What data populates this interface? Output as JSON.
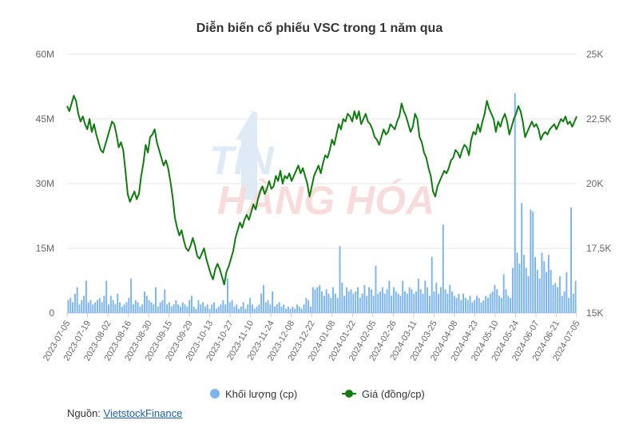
{
  "chart_data": {
    "type": "bar+line",
    "title": "Diễn biến cổ phiếu VSC trong 1 năm qua",
    "y_left": {
      "ticks": [
        "0",
        "15M",
        "30M",
        "45M",
        "60M"
      ],
      "range": [
        0,
        60000000
      ]
    },
    "y_right": {
      "ticks": [
        "15K",
        "17,5K",
        "20K",
        "22,5K",
        "25K"
      ],
      "range": [
        15000,
        25000
      ]
    },
    "x_ticks": [
      "2023-07-05",
      "2023-07-19",
      "2023-08-02",
      "2023-08-16",
      "2023-08-30",
      "2023-09-15",
      "2023-09-29",
      "2023-10-13",
      "2023-10-27",
      "2023-11-10",
      "2023-11-24",
      "2023-12-08",
      "2023-12-22",
      "2024-01-08",
      "2024-01-22",
      "2024-02-05",
      "2024-02-26",
      "2024-03-11",
      "2024-03-25",
      "2024-04-08",
      "2024-04-23",
      "2024-05-10",
      "2024-05-24",
      "2024-06-07",
      "2024-06-21",
      "2024-07-05"
    ],
    "series": [
      {
        "name": "Khối lượng (cp)",
        "kind": "bar",
        "axis": "left",
        "color": "#7cb5ec",
        "values": [
          3000000,
          3500000,
          2500000,
          4500000,
          6000000,
          2000000,
          3000000,
          4000000,
          7500000,
          2500000,
          3000000,
          2000000,
          2500000,
          3000000,
          3500000,
          2500000,
          4000000,
          7500000,
          2000000,
          4000000,
          3000000,
          2000000,
          4500000,
          2500000,
          1500000,
          2000000,
          2500000,
          3500000,
          8000000,
          2000000,
          3000000,
          2500000,
          1500000,
          2000000,
          5000000,
          4000000,
          3000000,
          2500000,
          2000000,
          6000000,
          1500000,
          2500000,
          3000000,
          5500000,
          2000000,
          2500000,
          1500000,
          2000000,
          3000000,
          2000000,
          1500000,
          2500000,
          2000000,
          1500000,
          3000000,
          4000000,
          1500000,
          1000000,
          3000000,
          2000000,
          2500000,
          1500000,
          2000000,
          1000000,
          2000000,
          2500000,
          1000000,
          1500000,
          2000000,
          3000000,
          2000000,
          8000000,
          2500000,
          3000000,
          1500000,
          2000000,
          1000000,
          1500000,
          2500000,
          1000000,
          2000000,
          3500000,
          2000000,
          1000000,
          1500000,
          2000000,
          4500000,
          6500000,
          2500000,
          3000000,
          2000000,
          5000000,
          1500000,
          2000000,
          2500000,
          1500000,
          2000000,
          1000000,
          1500000,
          1000000,
          1500000,
          1000000,
          2000000,
          1500000,
          1000000,
          2000000,
          3500000,
          3000000,
          1500000,
          6000000,
          5500000,
          6000000,
          6500000,
          5000000,
          4000000,
          5500000,
          4500000,
          3500000,
          6000000,
          4500000,
          3500000,
          15500000,
          7000000,
          4000000,
          6000000,
          5000000,
          5500000,
          4500000,
          5000000,
          6000000,
          3500000,
          4500000,
          6500000,
          4000000,
          6000000,
          5500000,
          4000000,
          11000000,
          4500000,
          5000000,
          6000000,
          4500000,
          5500000,
          7500000,
          4000000,
          6000000,
          5000000,
          4500000,
          4000000,
          7500000,
          5000000,
          4500000,
          6000000,
          5500000,
          4500000,
          5000000,
          8000000,
          5500000,
          4500000,
          7500000,
          6000000,
          4000000,
          13000000,
          5000000,
          7000000,
          4500000,
          6000000,
          20500000,
          5500000,
          4500000,
          6500000,
          5000000,
          4000000,
          3500000,
          4500000,
          3000000,
          4500000,
          3500000,
          3000000,
          4000000,
          2500000,
          3000000,
          4000000,
          3500000,
          2500000,
          3000000,
          4000000,
          3500000,
          4500000,
          5000000,
          6500000,
          5500000,
          4000000,
          3500000,
          9000000,
          5500000,
          4000000,
          3500000,
          10500000,
          51000000,
          14000000,
          11500000,
          25500000,
          13500000,
          10500000,
          8500000,
          24000000,
          23500000,
          13000000,
          10000000,
          8000000,
          14000000,
          12000000,
          9500000,
          13500000,
          10000000,
          6500000,
          7000000,
          6000000,
          8500000,
          4000000,
          5000000,
          9500000,
          3500000,
          24500000,
          4500000,
          7500000
        ]
      },
      {
        "name": "Giá (đồng/cp)",
        "kind": "line",
        "axis": "right",
        "color": "#107c10",
        "values": [
          23000,
          22800,
          23100,
          23400,
          23200,
          22700,
          22400,
          22600,
          22300,
          22100,
          22500,
          22000,
          22300,
          21900,
          21600,
          21300,
          21200,
          21500,
          21800,
          22100,
          22400,
          22300,
          21900,
          21400,
          21600,
          21300,
          20500,
          19600,
          19300,
          19500,
          19700,
          19400,
          19600,
          20300,
          20800,
          21500,
          21200,
          21800,
          21900,
          22100,
          21600,
          21300,
          21000,
          20700,
          20900,
          20600,
          20100,
          19500,
          18700,
          18300,
          18000,
          18200,
          17800,
          17500,
          17400,
          17600,
          17900,
          17600,
          17200,
          17100,
          17300,
          17500,
          17100,
          16800,
          16500,
          16300,
          16700,
          16900,
          16700,
          16400,
          16100,
          16600,
          16800,
          17100,
          17400,
          17900,
          18200,
          18500,
          18300,
          18600,
          18800,
          18600,
          18900,
          19200,
          19000,
          19400,
          19700,
          19900,
          19600,
          19800,
          20100,
          19800,
          19900,
          20300,
          20100,
          20500,
          20000,
          20300,
          20200,
          20400,
          20100,
          20300,
          20500,
          20700,
          20400,
          20600,
          20300,
          20000,
          19500,
          19900,
          20300,
          20500,
          20700,
          20400,
          20800,
          21100,
          21000,
          21300,
          21700,
          21500,
          21900,
          22300,
          22100,
          22500,
          22400,
          22700,
          22600,
          22400,
          22800,
          22500,
          22800,
          22300,
          22500,
          22700,
          22400,
          22300,
          22100,
          21800,
          21700,
          21500,
          21800,
          22100,
          21900,
          22000,
          22300,
          22200,
          22100,
          22400,
          22600,
          23100,
          22800,
          22600,
          22300,
          22000,
          22200,
          22700,
          22500,
          21800,
          21600,
          21200,
          21000,
          20600,
          20300,
          19700,
          19500,
          19900,
          20100,
          20300,
          20500,
          20400,
          20600,
          20900,
          21000,
          21300,
          21200,
          21000,
          21300,
          21500,
          21400,
          21100,
          21700,
          22000,
          21900,
          22300,
          22000,
          22400,
          22700,
          23200,
          22900,
          22700,
          22500,
          22000,
          22400,
          22200,
          22500,
          22700,
          22400,
          21900,
          22200,
          22500,
          22700,
          23000,
          22800,
          22400,
          21800,
          22000,
          22200,
          22400,
          22200,
          22300,
          22100,
          21700,
          21900,
          22000,
          21900,
          22100,
          22200,
          22300,
          22100,
          22300,
          22500,
          22400,
          22600,
          22300,
          22400,
          22200,
          22400,
          22600
        ]
      }
    ],
    "legend": {
      "position": "bottom-center",
      "items": [
        "Khối lượng (cp)",
        "Giá (đồng/cp)"
      ]
    },
    "grid": true
  },
  "watermark": {
    "line1": "TIN",
    "line2": "HÀNG HÓA"
  },
  "source": {
    "label": "Nguồn:",
    "link_text": "VietstockFinance"
  }
}
